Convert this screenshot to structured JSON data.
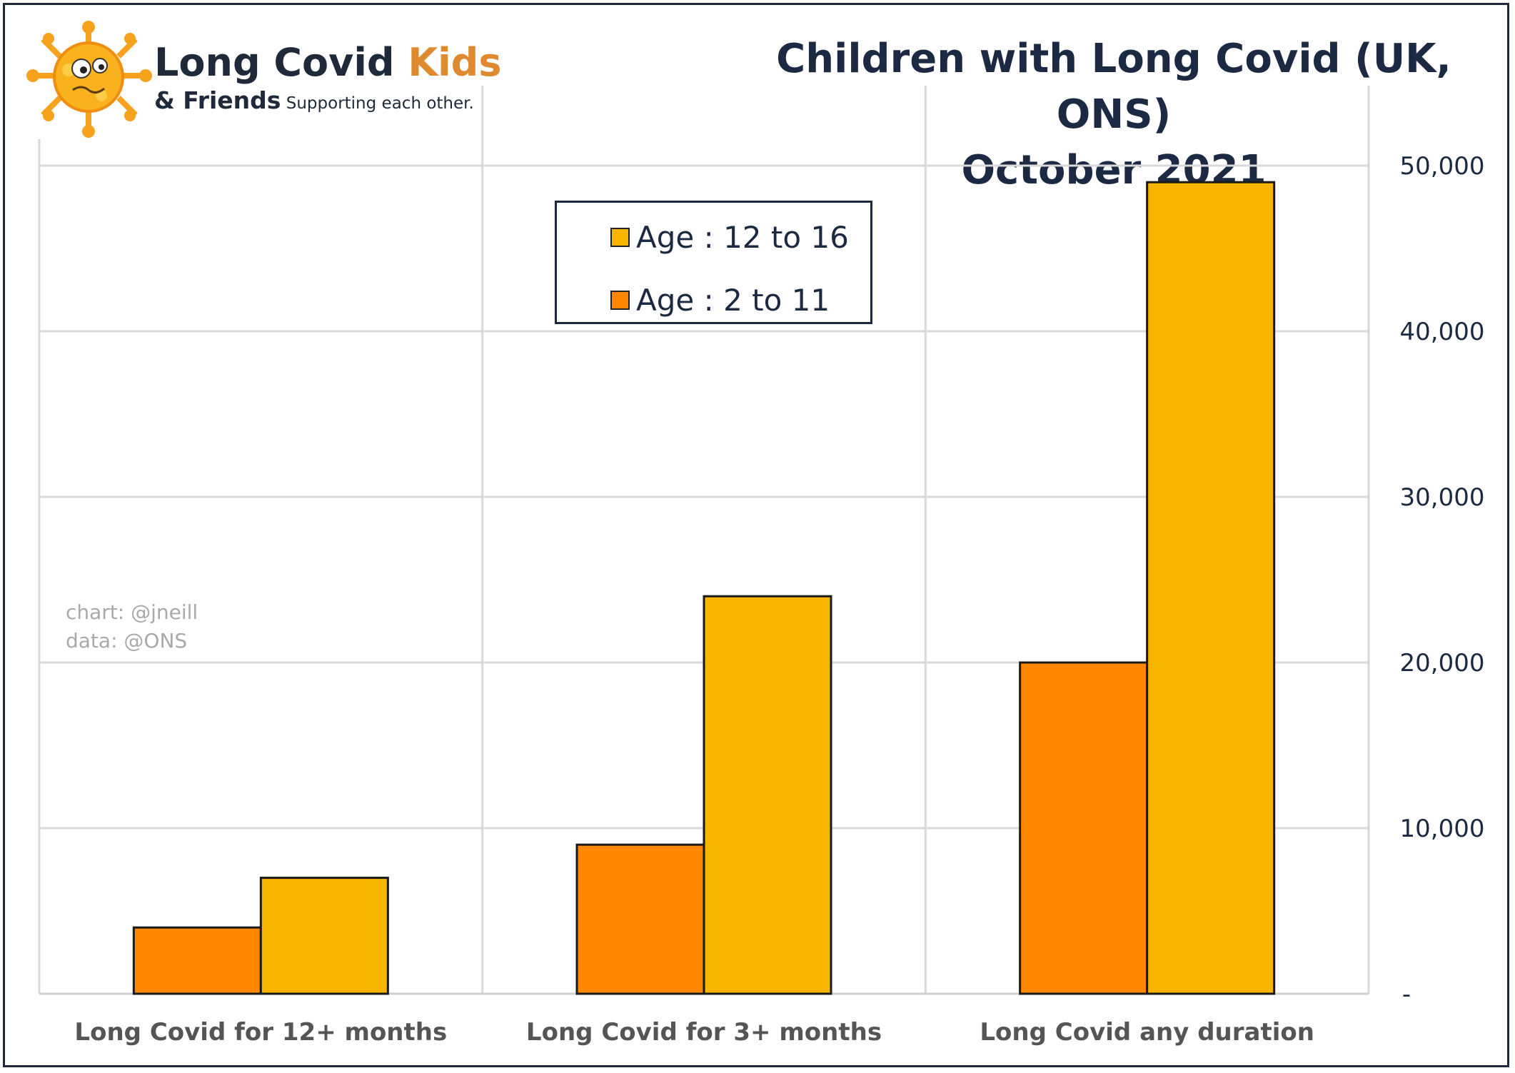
{
  "brand": {
    "name_part1": "Long Covid ",
    "name_part2": "Kids",
    "sub_part1": "& Friends",
    "sub_part2": " Supporting each other.",
    "logo_icon": "virus-mascot-icon",
    "colors": {
      "orange": "#f08c1a",
      "yellow": "#fbb612",
      "kids_text": "#e08a30",
      "navy": "#1e2a3a"
    }
  },
  "credit": {
    "line1": "chart: @jneill",
    "line2": "data: @ONS"
  },
  "chart_data": {
    "type": "bar",
    "title": "Children with Long Covid (UK, ONS)",
    "subtitle": "October 2021",
    "categories": [
      "Long Covid for 12+ months",
      "Long Covid for 3+ months",
      "Long Covid any duration"
    ],
    "series": [
      {
        "name": "Age : 2 to 11",
        "color": "#ff8800",
        "values": [
          4000,
          9000,
          20000
        ]
      },
      {
        "name": "Age : 12 to 16",
        "color": "#f8b500",
        "values": [
          7000,
          24000,
          49000
        ]
      }
    ],
    "legend_order": [
      1,
      0
    ],
    "legend_position": "top-center",
    "ylim": [
      0,
      50000
    ],
    "yticks": [
      0,
      10000,
      20000,
      30000,
      40000,
      50000
    ],
    "ytick_labels": [
      "-",
      "10,000",
      "20,000",
      "30,000",
      "40,000",
      "50,000"
    ],
    "y_axis_side": "right",
    "grid": true,
    "xlabel": "",
    "ylabel": ""
  }
}
